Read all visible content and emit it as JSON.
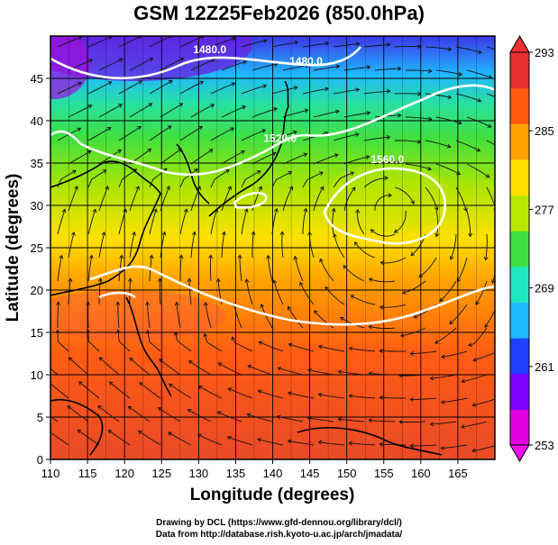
{
  "title": "GSM 12Z25Feb2026 (850.0hPa)",
  "credits": {
    "line1": "Drawing by DCL (https://www.gfd-dennou.org/library/dcl/)",
    "line2": "Data from http://database.rish.kyoto-u.ac.jp/arch/jmadata/"
  },
  "axes": {
    "xlabel": "Longitude (degrees)",
    "ylabel": "Latitude  (degrees)",
    "xlim": [
      110,
      170
    ],
    "ylim": [
      0,
      50
    ],
    "xticks": [
      "110",
      "115",
      "120",
      "125",
      "130",
      "135",
      "140",
      "145",
      "150",
      "155",
      "160",
      "165"
    ],
    "yticks": [
      "0",
      "5",
      "10",
      "15",
      "20",
      "25",
      "30",
      "35",
      "40",
      "45"
    ],
    "grid": true
  },
  "colorbar": {
    "ticks": [
      "253",
      "261",
      "269",
      "277",
      "285",
      "293"
    ],
    "min": 253,
    "max": 293,
    "colors": [
      "#e000e0",
      "#8000ff",
      "#2040ff",
      "#20b8ff",
      "#20e8c0",
      "#40e040",
      "#b8e800",
      "#ffe000",
      "#ffa000",
      "#ff5a10",
      "#e83030"
    ]
  },
  "contours": [
    {
      "label": "1480.0",
      "lon": 144.5,
      "lat": 46.6
    },
    {
      "label": "1520.0",
      "lon": 141.0,
      "lat": 37.5
    },
    {
      "label": "1560.0",
      "lon": 155.5,
      "lat": 35.0
    },
    {
      "label": "1480.0",
      "lon": 131.5,
      "lat": 48.0
    }
  ],
  "colors": {
    "contour": "#ffffff",
    "streamline": "#111111",
    "coast": "#000000"
  }
}
